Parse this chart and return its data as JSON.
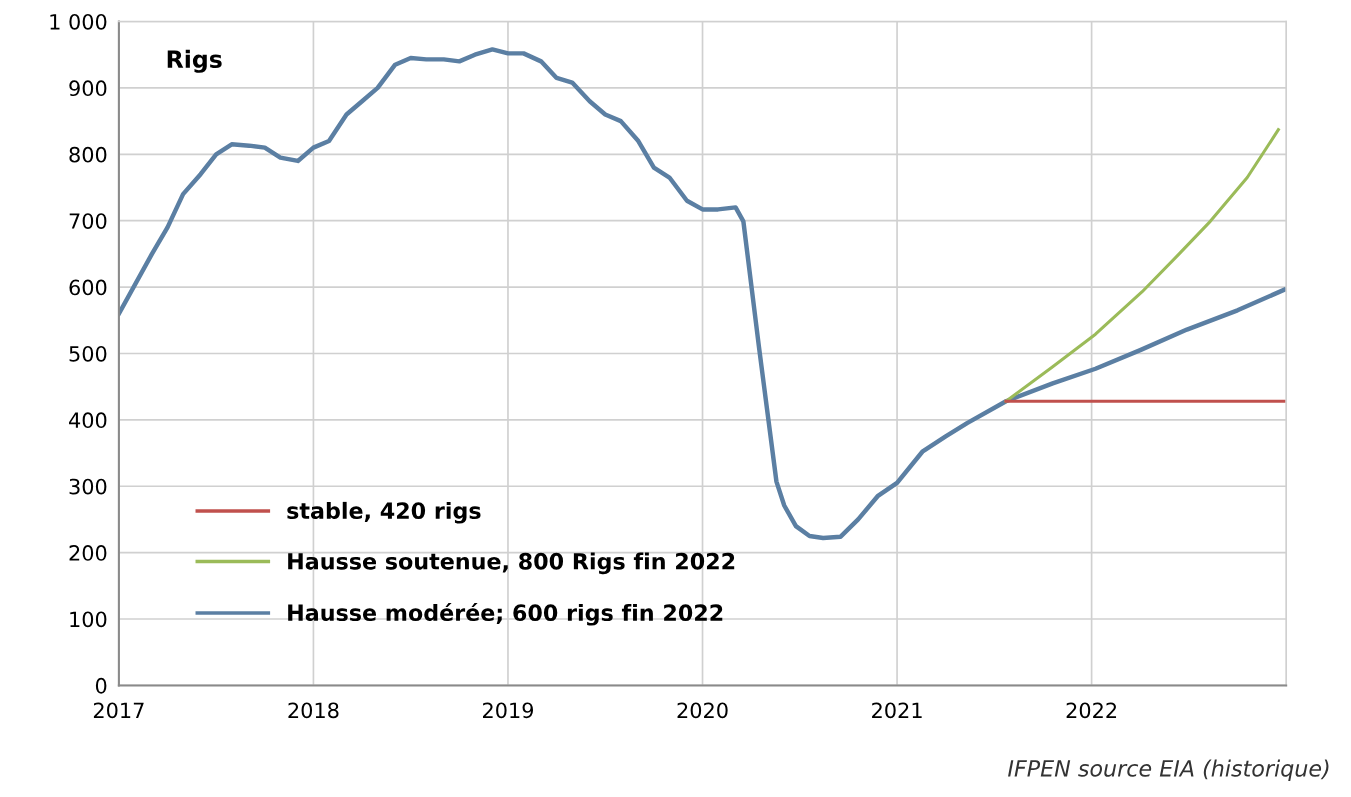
{
  "chart_data": {
    "type": "line",
    "ylabel": "Rigs",
    "xlim": [
      2017,
      2023
    ],
    "xticks": [
      2017,
      2018,
      2019,
      2020,
      2021,
      2022
    ],
    "ylim": [
      0,
      1000
    ],
    "yticks": [
      0,
      100,
      200,
      300,
      400,
      500,
      600,
      700,
      800,
      900,
      {
        "value": 1000,
        "label": "1 000"
      }
    ],
    "grid": true,
    "legend": "bottom left",
    "annotations": [
      "IFPEN source EIA (historique)"
    ],
    "series": [
      {
        "name": "stable, 420 rigs",
        "color": "#c0504d",
        "x": [
          2021.56,
          2022.99
        ],
        "values": [
          428,
          428
        ]
      },
      {
        "name": "Hausse soutenue, 800 Rigs fin 2022",
        "color": "#9bbb59",
        "x": [
          2021.56,
          2021.8,
          2022.02,
          2022.26,
          2022.45,
          2022.61,
          2022.8,
          2022.96
        ],
        "values": [
          428,
          480,
          529,
          593,
          650,
          699,
          765,
          837
        ]
      },
      {
        "name": "Hausse modérée; 600 rigs fin 2022",
        "color": "#5b7fa3",
        "x": [
          2017.0,
          2017.17,
          2017.25,
          2017.33,
          2017.42,
          2017.5,
          2017.58,
          2017.67,
          2017.75,
          2017.83,
          2017.92,
          2018.0,
          2018.08,
          2018.17,
          2018.25,
          2018.33,
          2018.42,
          2018.5,
          2018.58,
          2018.67,
          2018.75,
          2018.83,
          2018.92,
          2019.0,
          2019.08,
          2019.17,
          2019.25,
          2019.33,
          2019.42,
          2019.5,
          2019.58,
          2019.67,
          2019.75,
          2019.83,
          2019.92,
          2020.0,
          2020.08,
          2020.17,
          2020.21,
          2020.29,
          2020.38,
          2020.42,
          2020.48,
          2020.55,
          2020.62,
          2020.71,
          2020.8,
          2020.9,
          2021.0,
          2021.13,
          2021.25,
          2021.36,
          2021.56,
          2021.8,
          2022.02,
          2022.25,
          2022.49,
          2022.75,
          2022.99
        ],
        "values": [
          560,
          650,
          690,
          740,
          770,
          800,
          815,
          813,
          810,
          795,
          790,
          810,
          820,
          860,
          880,
          900,
          935,
          945,
          943,
          943,
          940,
          950,
          958,
          952,
          952,
          940,
          915,
          908,
          880,
          860,
          850,
          820,
          780,
          765,
          730,
          717,
          717,
          720,
          699,
          510,
          307,
          271,
          240,
          225,
          222,
          224,
          250,
          285,
          305,
          352,
          375,
          395,
          428,
          455,
          477,
          505,
          536,
          565,
          596
        ]
      }
    ]
  }
}
